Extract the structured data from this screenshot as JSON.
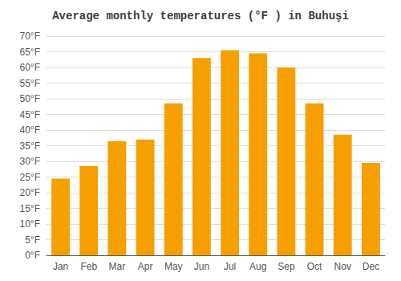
{
  "chart_data": {
    "type": "bar",
    "title": "Average monthly temperatures (°F ) in Buhuşi",
    "categories": [
      "Jan",
      "Feb",
      "Mar",
      "Apr",
      "May",
      "Jun",
      "Jul",
      "Aug",
      "Sep",
      "Oct",
      "Nov",
      "Dec"
    ],
    "values": [
      24.5,
      28.5,
      36.5,
      37.0,
      48.5,
      63.0,
      65.5,
      64.5,
      60.0,
      48.5,
      38.5,
      29.5
    ],
    "color": "#F5A000",
    "ylim": [
      0,
      70
    ],
    "yticks": [
      {
        "value": 0,
        "label": "0°F"
      },
      {
        "value": 5,
        "label": "5°F"
      },
      {
        "value": 10,
        "label": "10°F"
      },
      {
        "value": 15,
        "label": "15°F"
      },
      {
        "value": 20,
        "label": "20°F"
      },
      {
        "value": 25,
        "label": "25°F"
      },
      {
        "value": 30,
        "label": "30°F"
      },
      {
        "value": 35,
        "label": "35°F"
      },
      {
        "value": 40,
        "label": "40°F"
      },
      {
        "value": 45,
        "label": "45°F"
      },
      {
        "value": 50,
        "label": "50°F"
      },
      {
        "value": 55,
        "label": "55°F"
      },
      {
        "value": 60,
        "label": "60°F"
      },
      {
        "value": 65,
        "label": "65°F"
      },
      {
        "value": 70,
        "label": "70°F"
      }
    ],
    "grid": true
  }
}
